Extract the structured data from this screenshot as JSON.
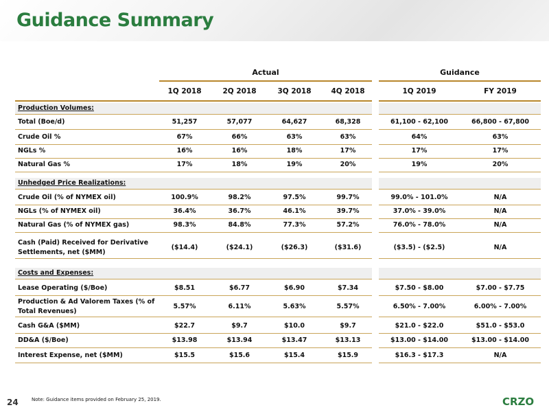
{
  "title": "Guidance Summary",
  "groups": {
    "actual": "Actual",
    "guidance": "Guidance"
  },
  "columns": [
    "1Q 2018",
    "2Q 2018",
    "3Q 2018",
    "4Q 2018",
    "1Q 2019",
    "FY 2019"
  ],
  "rows": [
    {
      "label": "Production Volumes:",
      "section": true,
      "values": []
    },
    {
      "label": "Total (Boe/d)",
      "values": [
        "51,257",
        "57,077",
        "64,627",
        "68,328",
        "61,100 - 62,100",
        "66,800 - 67,800"
      ]
    },
    {
      "label": "Crude Oil %",
      "values": [
        "67%",
        "66%",
        "63%",
        "63%",
        "64%",
        "63%"
      ]
    },
    {
      "label": "NGLs %",
      "values": [
        "16%",
        "16%",
        "18%",
        "17%",
        "17%",
        "17%"
      ]
    },
    {
      "label": "Natural Gas %",
      "values": [
        "17%",
        "18%",
        "19%",
        "20%",
        "19%",
        "20%"
      ]
    },
    {
      "label": "Unhedged Price Realizations:",
      "section": true,
      "values": []
    },
    {
      "label": "Crude Oil (% of NYMEX oil)",
      "values": [
        "100.9%",
        "98.2%",
        "97.5%",
        "99.7%",
        "99.0% - 101.0%",
        "N/A"
      ]
    },
    {
      "label": "NGLs (% of NYMEX oil)",
      "values": [
        "36.4%",
        "36.7%",
        "46.1%",
        "39.7%",
        "37.0% - 39.0%",
        "N/A"
      ]
    },
    {
      "label": "Natural Gas (% of NYMEX gas)",
      "values": [
        "98.3%",
        "84.8%",
        "77.3%",
        "57.2%",
        "76.0% - 78.0%",
        "N/A"
      ]
    },
    {
      "label": "Cash (Paid) Received for Derivative Settlements, net ($MM)",
      "values": [
        "($14.4)",
        "($24.1)",
        "($26.3)",
        "($31.6)",
        "($3.5) - ($2.5)",
        "N/A"
      ]
    },
    {
      "label": "Costs and Expenses:",
      "section": true,
      "values": []
    },
    {
      "label": "Lease Operating ($/Boe)",
      "values": [
        "$8.51",
        "$6.77",
        "$6.90",
        "$7.34",
        "$7.50 - $8.00",
        "$7.00 - $7.75"
      ]
    },
    {
      "label": "Production & Ad Valorem Taxes (% of Total Revenues)",
      "values": [
        "5.57%",
        "6.11%",
        "5.63%",
        "5.57%",
        "6.50% - 7.00%",
        "6.00% - 7.00%"
      ]
    },
    {
      "label": "Cash G&A ($MM)",
      "values": [
        "$22.7",
        "$9.7",
        "$10.0",
        "$9.7",
        "$21.0 - $22.0",
        "$51.0 - $53.0"
      ]
    },
    {
      "label": "DD&A ($/Boe)",
      "values": [
        "$13.98",
        "$13.94",
        "$13.47",
        "$13.13",
        "$13.00 - $14.00",
        "$13.00 - $14.00"
      ]
    },
    {
      "label": "Interest Expense, net ($MM)",
      "values": [
        "$15.5",
        "$15.6",
        "$15.4",
        "$15.9",
        "$16.3 - $17.3",
        "N/A"
      ]
    }
  ],
  "note": "Note: Guidance items provided on February 25, 2019.",
  "page_number": "24",
  "logo_text": "CRZO",
  "colors": {
    "title": "#2b7d3f",
    "accent_rule": "#b8862b",
    "row_separator": "#c9a458",
    "section_shade": "#efefef"
  }
}
